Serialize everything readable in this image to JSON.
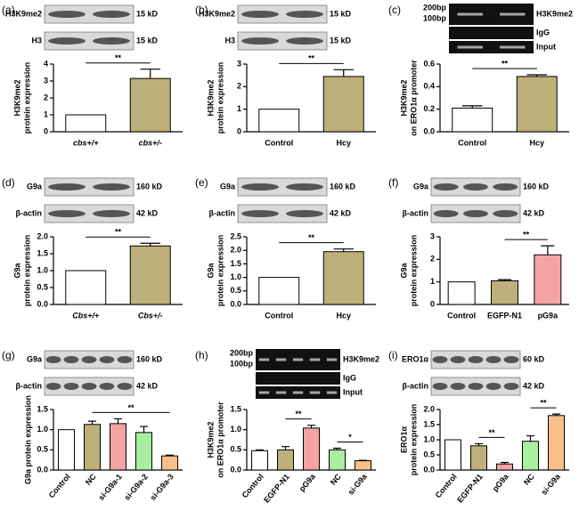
{
  "chart_data": [
    {
      "type": "bar",
      "panel": "(a)",
      "blots": [
        {
          "label": "H3K9me2",
          "size": "15 kD"
        },
        {
          "label": "H3",
          "size": "15 kD"
        }
      ],
      "y_label": [
        "H3K9me2",
        "protein expression"
      ],
      "categories": [
        "cbs+/+",
        "cbs+/-"
      ],
      "italic_categories": true,
      "values": [
        1,
        3.15
      ],
      "errors": [
        0,
        0.55
      ],
      "colors": [
        "#ffffff",
        "#bdb07a"
      ],
      "ylim": [
        0,
        4
      ],
      "yticks": [
        0,
        1,
        2,
        3,
        4
      ],
      "sig": [
        {
          "between": [
            0,
            1
          ],
          "label": "**"
        }
      ]
    },
    {
      "type": "bar",
      "panel": "(b)",
      "blots": [
        {
          "label": "H3K9me2",
          "size": "15 kD"
        },
        {
          "label": "H3",
          "size": "15 kD"
        }
      ],
      "y_label": [
        "H3K9me2",
        "protein expression"
      ],
      "categories": [
        "Control",
        "Hcy"
      ],
      "values": [
        1,
        2.45
      ],
      "errors": [
        0,
        0.3
      ],
      "colors": [
        "#ffffff",
        "#bdb07a"
      ],
      "ylim": [
        0,
        3
      ],
      "yticks": [
        0,
        1,
        2,
        3
      ],
      "sig": [
        {
          "between": [
            0,
            1
          ],
          "label": "**"
        }
      ]
    },
    {
      "type": "bar",
      "panel": "(c)",
      "gel": {
        "markers": [
          "200bp",
          "100bp"
        ],
        "rows": [
          "H3K9me2",
          "IgG",
          "Input"
        ]
      },
      "y_label": [
        "H3K9me2",
        "on ERO1α promoter"
      ],
      "categories": [
        "Control",
        "Hcy"
      ],
      "values": [
        0.21,
        0.49
      ],
      "errors": [
        0.02,
        0.015
      ],
      "colors": [
        "#ffffff",
        "#bdb07a"
      ],
      "ylim": [
        0,
        0.6
      ],
      "yticks": [
        {
          "value": 0,
          "label": "0.0"
        },
        0.2,
        0.4,
        0.6
      ],
      "sig": [
        {
          "between": [
            0,
            1
          ],
          "label": "**"
        }
      ]
    },
    {
      "type": "bar",
      "panel": "(d)",
      "blots": [
        {
          "label": "G9a",
          "size": "160 kD"
        },
        {
          "label": "β-actin",
          "size": "42 kD"
        }
      ],
      "y_label": [
        "G9a",
        "protein expression"
      ],
      "categories": [
        "Cbs+/+",
        "Cbs+/-"
      ],
      "italic_categories": true,
      "values": [
        1,
        1.73
      ],
      "errors": [
        0,
        0.08
      ],
      "colors": [
        "#ffffff",
        "#bdb07a"
      ],
      "ylim": [
        0,
        2
      ],
      "yticks": [
        {
          "value": 0,
          "label": "0.0"
        },
        0.5,
        {
          "value": 1,
          "label": "1.0"
        },
        1.5,
        {
          "value": 2,
          "label": "2.0"
        }
      ],
      "sig": [
        {
          "between": [
            0,
            1
          ],
          "label": "**"
        }
      ]
    },
    {
      "type": "bar",
      "panel": "(e)",
      "blots": [
        {
          "label": "G9a",
          "size": "160 kD"
        },
        {
          "label": "β-actin",
          "size": "42 kD"
        }
      ],
      "y_label": [
        "G9a",
        "protein expression"
      ],
      "categories": [
        "Control",
        "Hcy"
      ],
      "values": [
        1,
        1.95
      ],
      "errors": [
        0,
        0.1
      ],
      "colors": [
        "#ffffff",
        "#bdb07a"
      ],
      "ylim": [
        0,
        2.5
      ],
      "yticks": [
        {
          "value": 0,
          "label": "0.0"
        },
        0.5,
        {
          "value": 1,
          "label": "1.0"
        },
        1.5,
        {
          "value": 2,
          "label": "2.0"
        },
        2.5
      ],
      "sig": [
        {
          "between": [
            0,
            1
          ],
          "label": "**"
        }
      ]
    },
    {
      "type": "bar",
      "panel": "(f)",
      "blots": [
        {
          "label": "G9a",
          "size": "160 kD"
        },
        {
          "label": "β-actin",
          "size": "42 kD"
        }
      ],
      "y_label": [
        "G9a",
        "protein expression"
      ],
      "categories": [
        "Control",
        "EGFP-N1",
        "pG9a"
      ],
      "values": [
        1,
        1.05,
        2.2
      ],
      "errors": [
        0,
        0.05,
        0.4
      ],
      "colors": [
        "#ffffff",
        "#bdb07a",
        "#f5a3a3"
      ],
      "ylim": [
        0,
        3
      ],
      "yticks": [
        0,
        1,
        2,
        3
      ],
      "sig": [
        {
          "between": [
            1,
            2
          ],
          "label": "**"
        }
      ]
    },
    {
      "type": "bar",
      "panel": "(g)",
      "blots": [
        {
          "label": "G9a",
          "size": "160 kD"
        },
        {
          "label": "β-actin",
          "size": "42 kD"
        }
      ],
      "y_label": [
        "G9a protein expression"
      ],
      "categories": [
        "Control",
        "NC",
        "si-G9a-1",
        "si-G9a-2",
        "si-G9a-3"
      ],
      "rotate_labels": true,
      "values": [
        1,
        1.13,
        1.15,
        0.93,
        0.35
      ],
      "errors": [
        0,
        0.08,
        0.12,
        0.15,
        0.02
      ],
      "colors": [
        "#ffffff",
        "#bdb07a",
        "#f5a3a3",
        "#a8f0a0",
        "#f7c08a"
      ],
      "ylim": [
        0,
        1.5
      ],
      "yticks": [
        {
          "value": 0,
          "label": "0.0"
        },
        0.5,
        {
          "value": 1,
          "label": "1.0"
        },
        1.5
      ],
      "sig": [
        {
          "between": [
            1,
            4
          ],
          "label": "**"
        }
      ]
    },
    {
      "type": "bar",
      "panel": "(h)",
      "gel": {
        "markers": [
          "200bp",
          "100bp"
        ],
        "rows": [
          "H3K9me2",
          "IgG",
          "Input"
        ]
      },
      "y_label": [
        "H3K9me2",
        "on ERO1α promoter"
      ],
      "categories": [
        "Control",
        "EGFP-N1",
        "pG9a",
        "NC",
        "si-G9a"
      ],
      "rotate_labels": true,
      "values": [
        0.48,
        0.5,
        1.04,
        0.5,
        0.23
      ],
      "errors": [
        0.02,
        0.08,
        0.07,
        0.04,
        0.01
      ],
      "colors": [
        "#ffffff",
        "#bdb07a",
        "#f5a3a3",
        "#a8f0a0",
        "#f7c08a"
      ],
      "ylim": [
        0,
        1.5
      ],
      "yticks": [
        {
          "value": 0,
          "label": "0.0"
        },
        0.5,
        {
          "value": 1,
          "label": "1.0"
        },
        1.5
      ],
      "sig": [
        {
          "between": [
            1,
            2
          ],
          "label": "**"
        },
        {
          "between": [
            3,
            4
          ],
          "label": "*"
        }
      ]
    },
    {
      "type": "bar",
      "panel": "(i)",
      "blots": [
        {
          "label": "ERO1α",
          "size": "60 kD"
        },
        {
          "label": "β-actin",
          "size": "42 kD"
        }
      ],
      "y_label": [
        "ERO1α",
        "protein expression"
      ],
      "categories": [
        "Control",
        "EGFP-N1",
        "pG9a",
        "NC",
        "si-G9a"
      ],
      "rotate_labels": true,
      "values": [
        1,
        0.8,
        0.2,
        0.95,
        1.8
      ],
      "errors": [
        0,
        0.07,
        0.05,
        0.18,
        0.05
      ],
      "colors": [
        "#ffffff",
        "#bdb07a",
        "#f5a3a3",
        "#a8f0a0",
        "#f7c08a"
      ],
      "ylim": [
        0,
        2
      ],
      "yticks": [
        {
          "value": 0,
          "label": "0.0"
        },
        0.5,
        {
          "value": 1,
          "label": "1.0"
        },
        1.5,
        {
          "value": 2,
          "label": "2.0"
        }
      ],
      "sig": [
        {
          "between": [
            1,
            2
          ],
          "label": "**"
        },
        {
          "between": [
            3,
            4
          ],
          "label": "**"
        }
      ]
    }
  ]
}
